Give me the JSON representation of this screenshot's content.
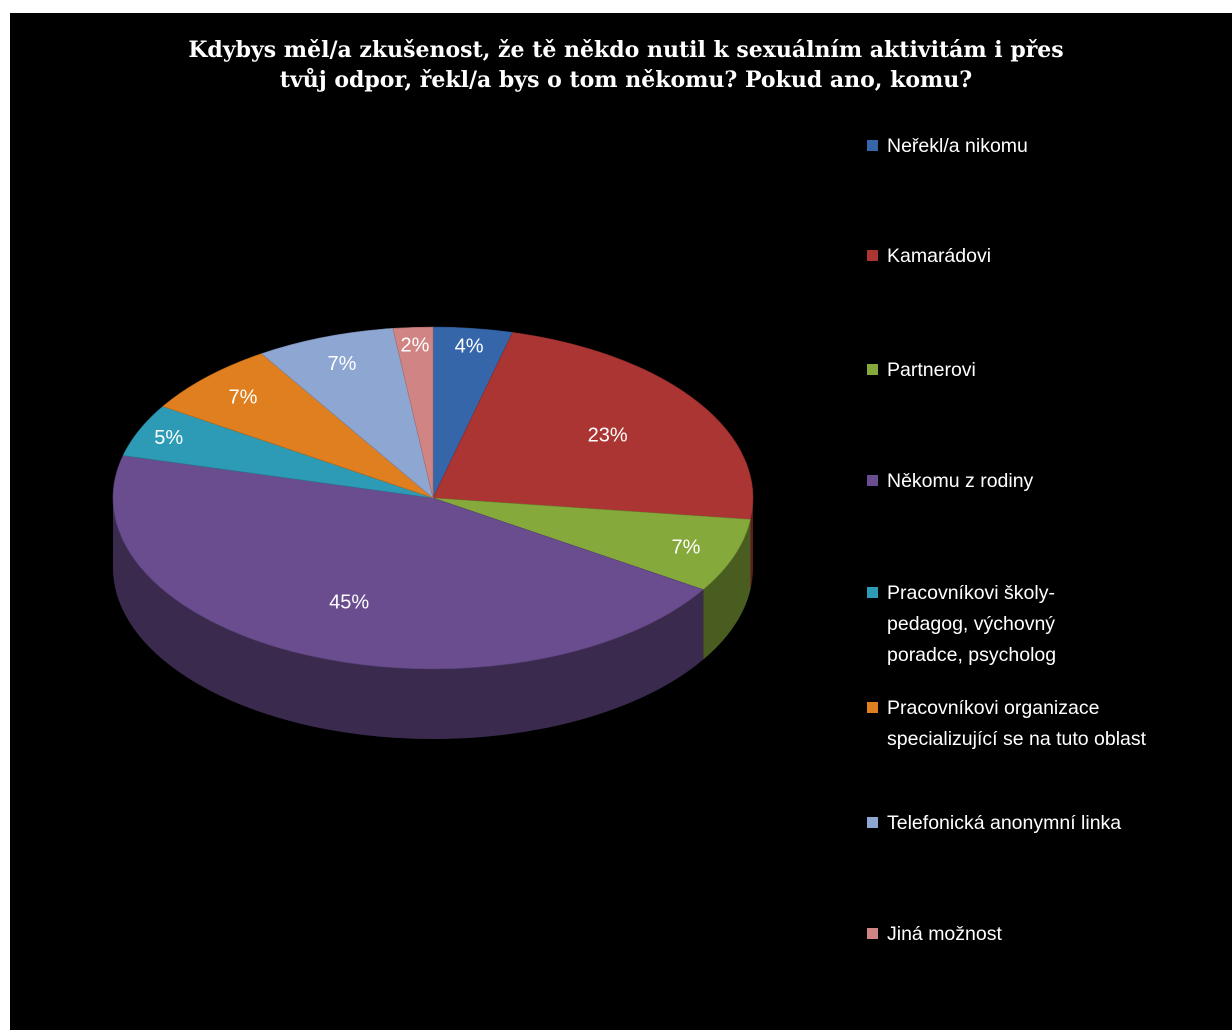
{
  "chart_data": {
    "type": "pie",
    "style": "3d",
    "title_lines": [
      "Kdybys měl/a zkušenost, že tě někdo nutil k sexuálním aktivitám i přes",
      "tvůj odpor, řekl/a bys o tom někomu? Pokud ano, komu?"
    ],
    "legend_position": "right",
    "slices": [
      {
        "label": "Neřekl/a nikomu",
        "label_lines": [
          "Neřekl/a nikomu"
        ],
        "value": 4,
        "value_label": "4%",
        "color": "#3566aa"
      },
      {
        "label": "Kamarádovi",
        "label_lines": [
          "Kamarádovi"
        ],
        "value": 23,
        "value_label": "23%",
        "color": "#ab3532"
      },
      {
        "label": "Partnerovi",
        "label_lines": [
          "Partnerovi"
        ],
        "value": 7,
        "value_label": "7%",
        "color": "#86a93c"
      },
      {
        "label": "Někomu z rodiny",
        "label_lines": [
          "Někomu z rodiny"
        ],
        "value": 45,
        "value_label": "45%",
        "color": "#6a4d8e"
      },
      {
        "label": "Pracovníkovi školy-pedagog, výchovný poradce, psycholog",
        "label_lines": [
          "Pracovníkovi školy-",
          "pedagog, výchovný",
          "poradce, psycholog"
        ],
        "value": 5,
        "value_label": "5%",
        "color": "#2d9bb5"
      },
      {
        "label": "Pracovníkovi organizace specializující se na tuto oblast",
        "label_lines": [
          "Pracovníkovi organizace",
          "specializující se na tuto oblast"
        ],
        "value": 7,
        "value_label": "7%",
        "color": "#e07f1f"
      },
      {
        "label": "Telefonická anonymní linka",
        "label_lines": [
          "Telefonická anonymní linka"
        ],
        "value": 7,
        "value_label": "7%",
        "color": "#8ea6d2"
      },
      {
        "label": "Jiná možnost",
        "label_lines": [
          "Jiná možnost"
        ],
        "value": 2,
        "value_label": "2%",
        "color": "#d08484"
      }
    ]
  }
}
